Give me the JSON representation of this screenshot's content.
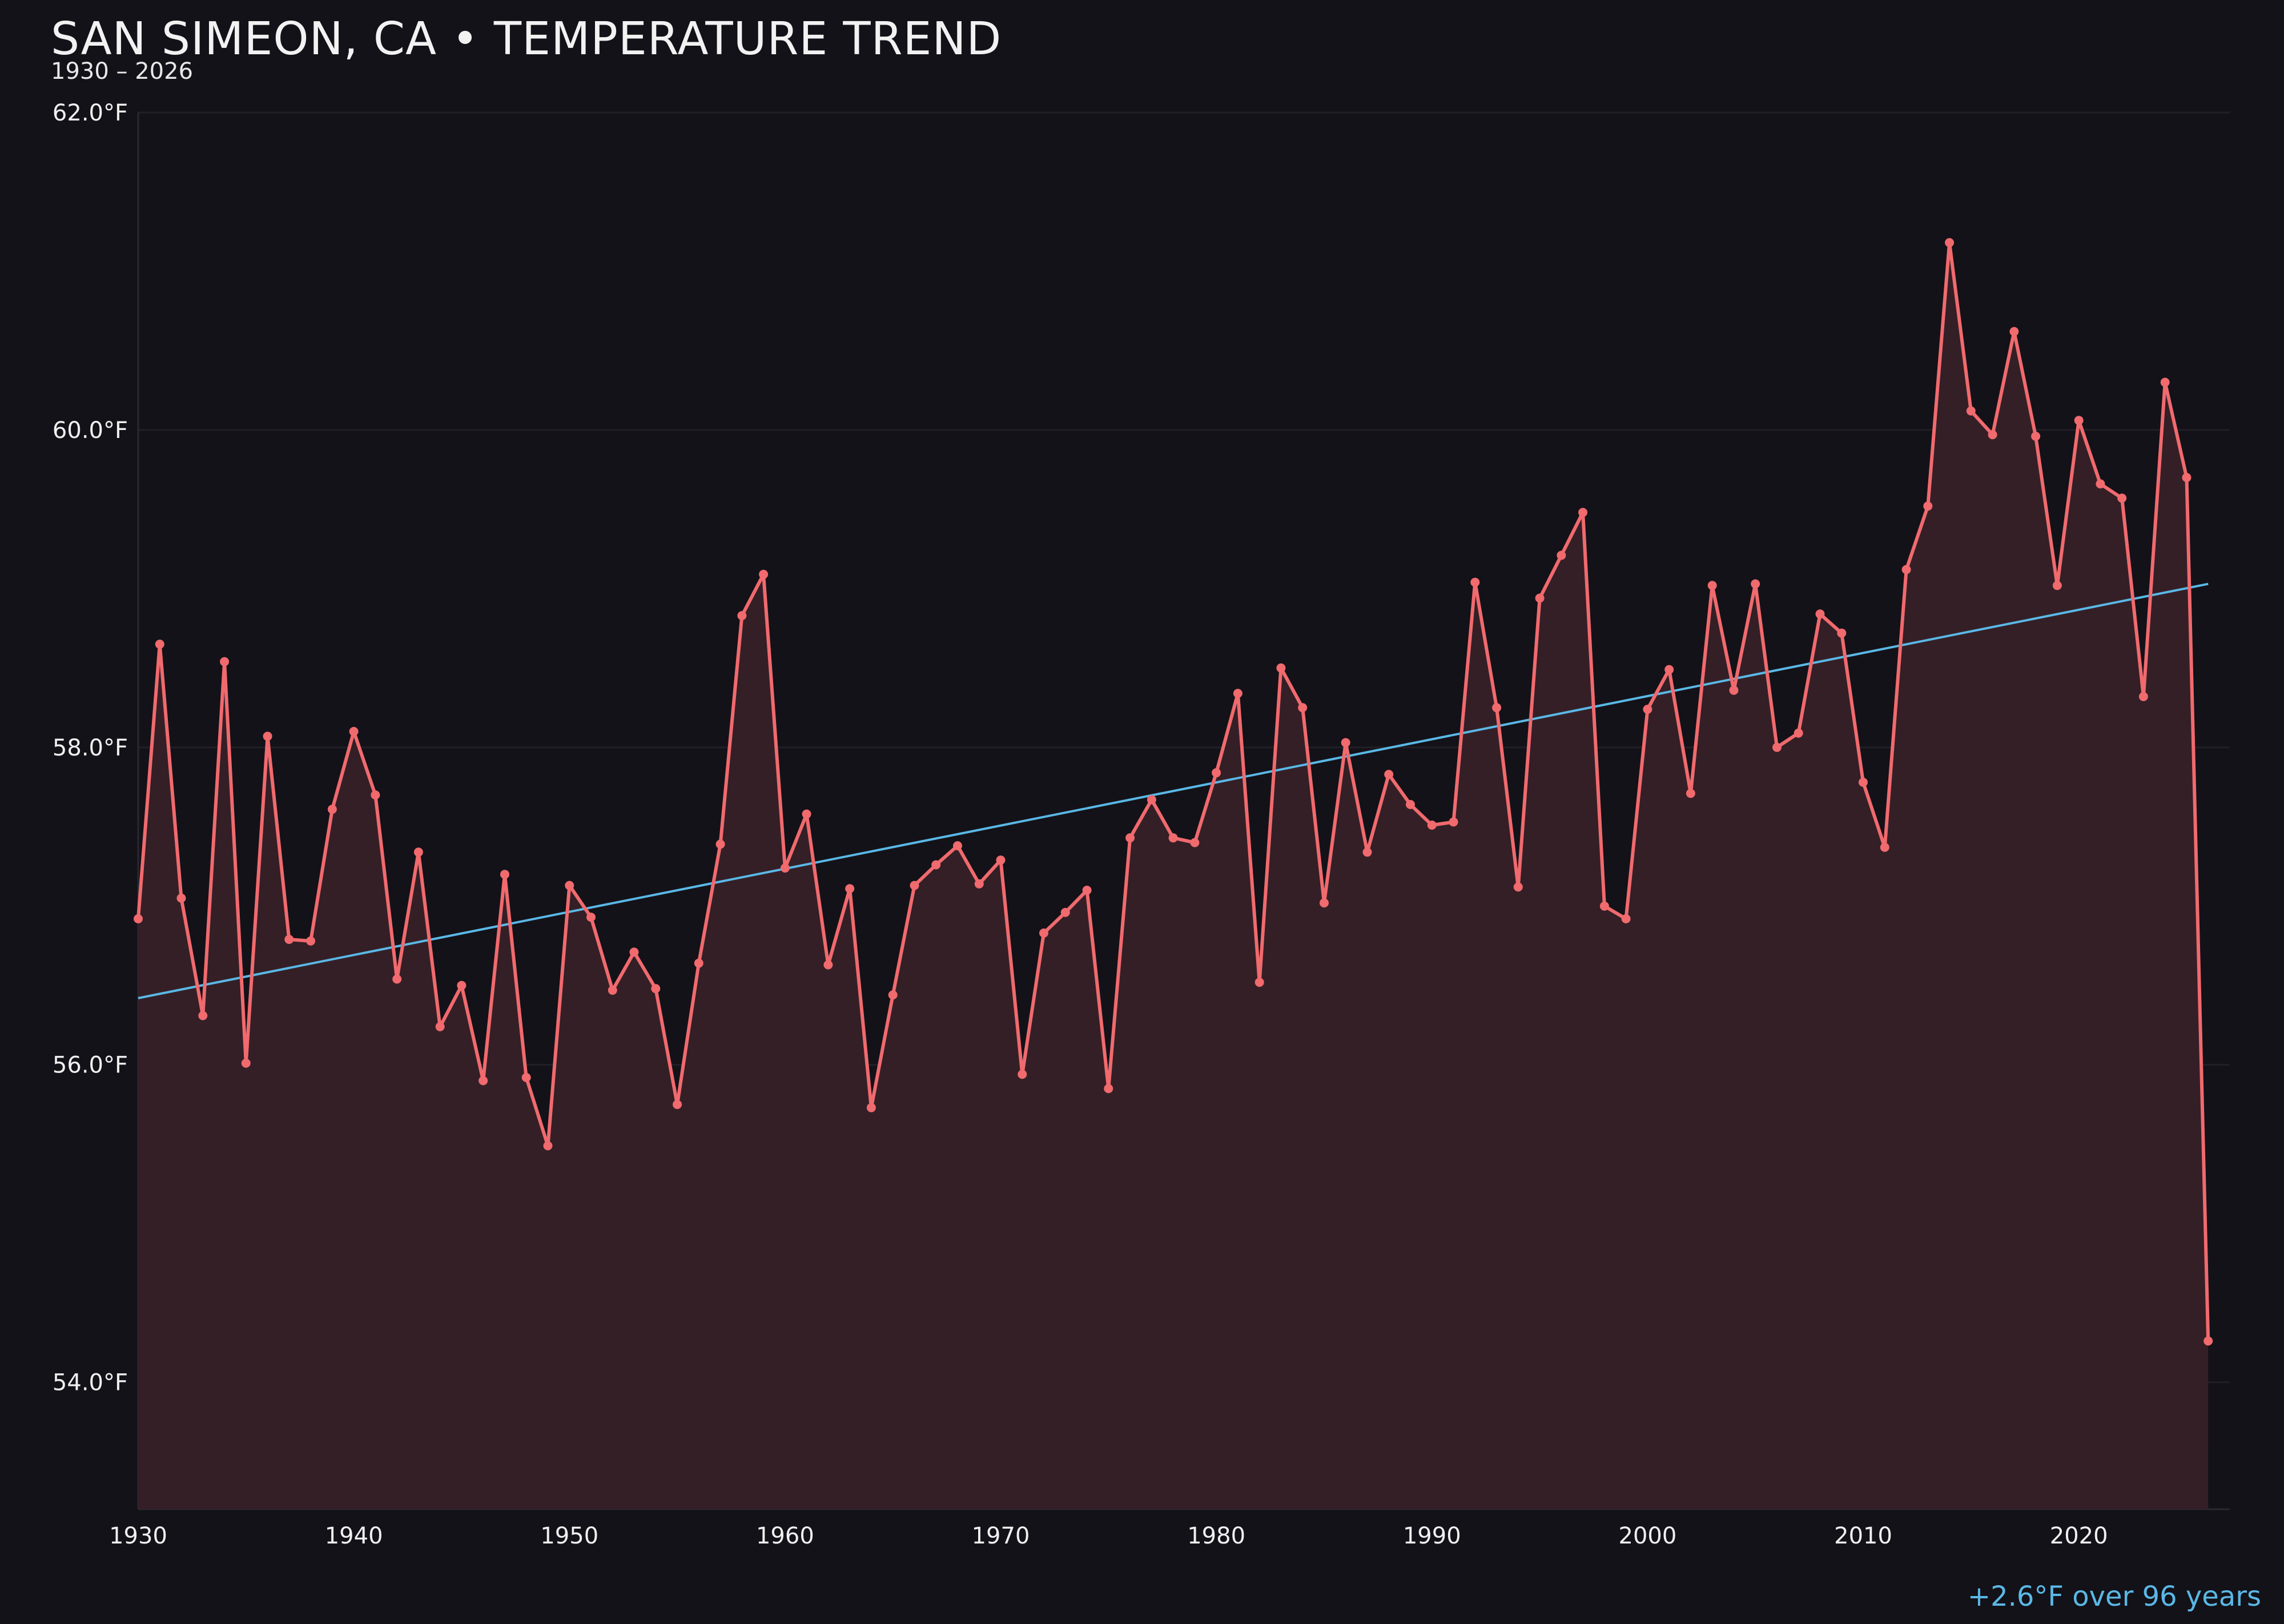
{
  "title": "SAN SIMEON, CA • TEMPERATURE TREND",
  "subtitle": "1930 – 2026",
  "annotation": "+2.6°F over 96 years",
  "colors": {
    "background": "#131218",
    "series_line": "#f06a6e",
    "series_fill": "#341f26",
    "trend_line": "#5ab8e6",
    "grid": "#221f27",
    "text": "#f0f0f0"
  },
  "chart_data": {
    "type": "line",
    "title": "SAN SIMEON, CA • TEMPERATURE TREND",
    "subtitle": "1930 – 2026",
    "xlabel": "",
    "ylabel": "",
    "xlim": [
      1930,
      2027
    ],
    "ylim": [
      53.2,
      62.0
    ],
    "x_ticks": [
      1930,
      1940,
      1950,
      1960,
      1970,
      1980,
      1990,
      2000,
      2010,
      2020
    ],
    "y_ticks": [
      54.0,
      56.0,
      58.0,
      60.0,
      62.0
    ],
    "y_tick_labels": [
      "54.0°F",
      "56.0°F",
      "58.0°F",
      "60.0°F",
      "62.0°F"
    ],
    "grid": "horizontal",
    "area_fill": true,
    "series": [
      {
        "x": [
          1930,
          1931,
          1932,
          1933,
          1934,
          1935,
          1936,
          1937,
          1938,
          1939,
          1940,
          1941,
          1942,
          1943,
          1944,
          1945,
          1946,
          1947,
          1948,
          1949,
          1950,
          1951,
          1952,
          1953,
          1954,
          1955,
          1956,
          1957,
          1958,
          1959,
          1960,
          1961,
          1962,
          1963,
          1964,
          1965,
          1966,
          1967,
          1968,
          1969,
          1970,
          1971,
          1972,
          1973,
          1974,
          1975,
          1976,
          1977,
          1978,
          1979,
          1980,
          1981,
          1982,
          1983,
          1984,
          1985,
          1986,
          1987,
          1988,
          1989,
          1990,
          1991,
          1992,
          1993,
          1994,
          1995,
          1996,
          1997,
          1998,
          1999,
          2000,
          2001,
          2002,
          2003,
          2004,
          2005,
          2006,
          2007,
          2008,
          2009,
          2010,
          2011,
          2012,
          2013,
          2014,
          2015,
          2016,
          2017,
          2018,
          2019,
          2020,
          2021,
          2022,
          2023,
          2024,
          2025,
          2026
        ],
        "values": [
          56.92,
          58.65,
          57.05,
          56.31,
          58.54,
          56.01,
          58.07,
          56.79,
          56.78,
          57.61,
          58.1,
          57.7,
          56.54,
          57.34,
          56.24,
          56.5,
          55.9,
          57.2,
          55.92,
          55.49,
          57.13,
          56.93,
          56.47,
          56.71,
          56.48,
          55.75,
          56.64,
          57.39,
          58.83,
          59.09,
          57.24,
          57.58,
          56.63,
          57.11,
          55.73,
          56.44,
          57.13,
          57.26,
          57.38,
          57.14,
          57.29,
          55.94,
          56.83,
          56.96,
          57.1,
          55.85,
          57.43,
          57.67,
          57.43,
          57.4,
          57.84,
          58.34,
          56.52,
          58.5,
          58.25,
          57.02,
          58.03,
          57.34,
          57.83,
          57.64,
          57.51,
          57.53,
          59.04,
          58.25,
          57.12,
          58.94,
          59.21,
          59.48,
          57.0,
          56.92,
          58.24,
          58.49,
          57.71,
          59.02,
          58.36,
          59.03,
          58.0,
          58.09,
          58.84,
          58.72,
          57.78,
          57.37,
          59.12,
          59.52,
          61.18,
          60.12,
          59.97,
          60.62,
          59.96,
          59.02,
          60.06,
          59.66,
          59.57,
          58.32,
          60.3,
          59.7,
          54.26
        ]
      }
    ],
    "trend": {
      "x": [
        1930,
        2026
      ],
      "values": [
        56.42,
        59.03
      ]
    }
  }
}
